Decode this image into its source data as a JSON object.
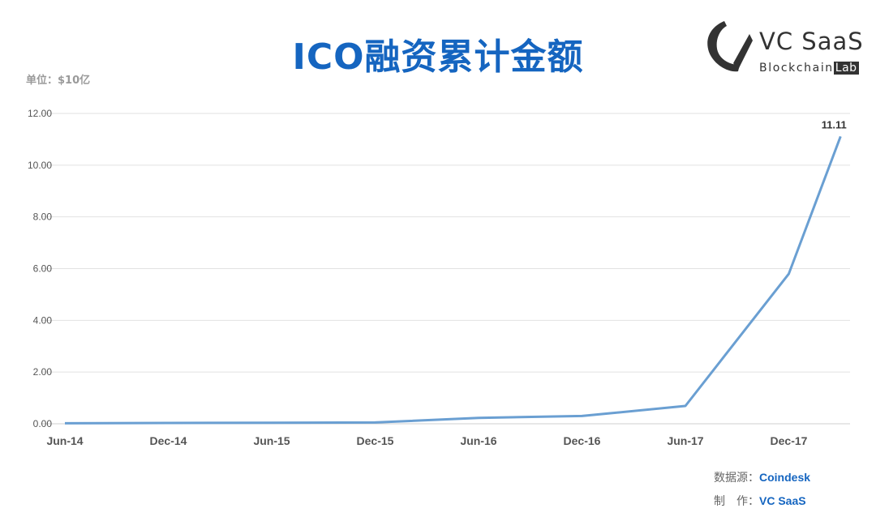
{
  "header": {
    "title": "ICO融资累计金额",
    "unit_label": "单位：$10亿"
  },
  "logo": {
    "name": "VC SaaS",
    "sub_prefix": "Blockchain",
    "sub_suffix": "Lab",
    "icon": "vc-saas-logo-icon"
  },
  "credits": {
    "source_label": "数据源：",
    "source_value": "Coindesk",
    "maker_label": "制　作：",
    "maker_value": "VC SaaS"
  },
  "colors": {
    "title": "#1565c0",
    "line": "#6a9fd2",
    "grid": "#e2e2e2"
  },
  "chart_data": {
    "type": "line",
    "title": "ICO融资累计金额",
    "ylabel": "单位：$10亿",
    "ylim": [
      0,
      12
    ],
    "yticks": [
      "0.00",
      "2.00",
      "4.00",
      "6.00",
      "8.00",
      "10.00",
      "12.00"
    ],
    "xticks": [
      "Jun-14",
      "Dec-14",
      "Jun-15",
      "Dec-15",
      "Jun-16",
      "Dec-16",
      "Jun-17",
      "Dec-17"
    ],
    "grid": true,
    "legend": "none",
    "series": [
      {
        "x": [
          "Jun-14",
          "Dec-14",
          "Jun-15",
          "Dec-15",
          "Jun-16",
          "Dec-16",
          "Jun-17",
          "Dec-17",
          "Mar-18"
        ],
        "values": [
          0.02,
          0.03,
          0.04,
          0.05,
          0.23,
          0.3,
          0.69,
          5.8,
          11.11
        ],
        "data_labels": [
          "",
          "",
          "",
          "",
          "",
          "",
          "",
          "",
          "11.11"
        ]
      }
    ]
  }
}
